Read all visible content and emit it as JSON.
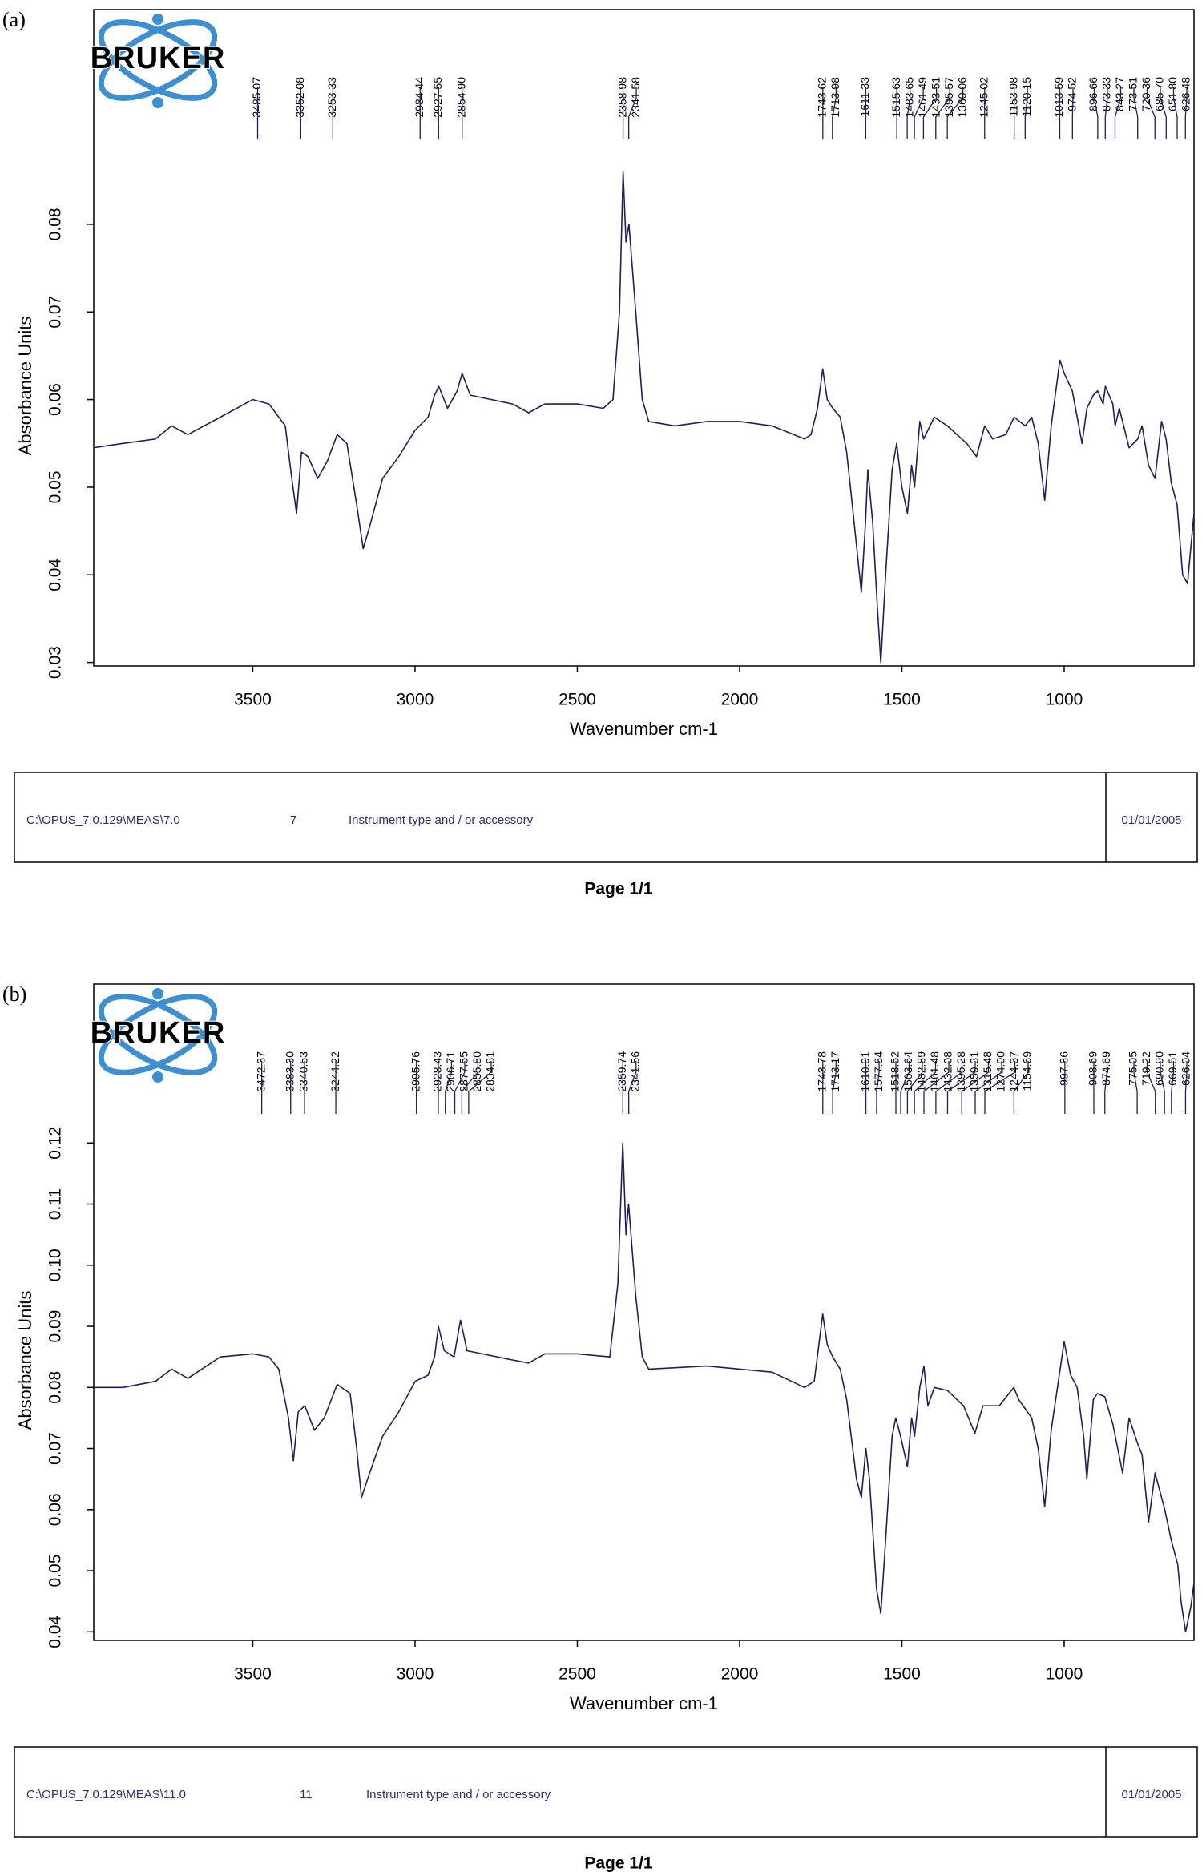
{
  "chart_data": [
    {
      "type": "line",
      "panel_label": "(a)",
      "logo_text": "BRUKER",
      "color": "#1f1f5c",
      "xlabel": "Wavenumber cm-1",
      "ylabel": "Absorbance Units",
      "xlim": [
        3990,
        600
      ],
      "ylim": [
        0.0296,
        0.1045
      ],
      "xticks": [
        3500,
        3000,
        2500,
        2000,
        1500,
        1000
      ],
      "yticks": [
        0.03,
        0.04,
        0.05,
        0.06,
        0.07,
        0.08
      ],
      "x": [
        3990,
        3900,
        3800,
        3750,
        3700,
        3600,
        3500,
        3450,
        3400,
        3380,
        3365,
        3350,
        3330,
        3300,
        3270,
        3240,
        3210,
        3180,
        3160,
        3140,
        3100,
        3050,
        3000,
        2960,
        2940,
        2927,
        2900,
        2870,
        2855,
        2830,
        2700,
        2650,
        2600,
        2500,
        2420,
        2390,
        2370,
        2359,
        2350,
        2341,
        2320,
        2300,
        2280,
        2200,
        2100,
        2000,
        1900,
        1800,
        1780,
        1760,
        1744,
        1730,
        1713,
        1690,
        1670,
        1650,
        1625,
        1612,
        1605,
        1590,
        1575,
        1565,
        1550,
        1530,
        1516,
        1500,
        1483,
        1470,
        1461,
        1445,
        1433,
        1420,
        1400,
        1360,
        1300,
        1270,
        1245,
        1220,
        1180,
        1154,
        1120,
        1100,
        1080,
        1060,
        1040,
        1013,
        1000,
        975,
        960,
        945,
        930,
        910,
        897,
        880,
        873,
        850,
        843,
        830,
        800,
        773,
        760,
        740,
        720,
        700,
        686,
        670,
        652,
        635,
        620,
        610,
        600
      ],
      "values": [
        0.0545,
        0.055,
        0.0555,
        0.057,
        0.056,
        0.058,
        0.06,
        0.0595,
        0.057,
        0.051,
        0.047,
        0.054,
        0.0535,
        0.051,
        0.053,
        0.056,
        0.055,
        0.048,
        0.043,
        0.0455,
        0.051,
        0.0535,
        0.0565,
        0.058,
        0.0605,
        0.0615,
        0.059,
        0.061,
        0.063,
        0.0605,
        0.0595,
        0.0585,
        0.0595,
        0.0595,
        0.059,
        0.06,
        0.07,
        0.086,
        0.078,
        0.08,
        0.07,
        0.06,
        0.0575,
        0.057,
        0.0575,
        0.0575,
        0.057,
        0.0555,
        0.056,
        0.059,
        0.0635,
        0.06,
        0.059,
        0.058,
        0.054,
        0.047,
        0.038,
        0.046,
        0.052,
        0.046,
        0.036,
        0.03,
        0.04,
        0.052,
        0.055,
        0.05,
        0.047,
        0.0525,
        0.05,
        0.0575,
        0.0555,
        0.0565,
        0.058,
        0.057,
        0.055,
        0.0535,
        0.057,
        0.0555,
        0.056,
        0.058,
        0.057,
        0.058,
        0.055,
        0.0485,
        0.057,
        0.0645,
        0.063,
        0.061,
        0.058,
        0.055,
        0.059,
        0.0605,
        0.061,
        0.0595,
        0.0615,
        0.0595,
        0.057,
        0.059,
        0.0545,
        0.0555,
        0.057,
        0.0525,
        0.051,
        0.0575,
        0.0555,
        0.0505,
        0.048,
        0.04,
        0.039,
        0.043,
        0.047
      ],
      "peak_labels": [
        3485.07,
        3352.08,
        3253.33,
        2984.44,
        2927.55,
        {
          "value": 2854.9,
          "label": "2854.90"
        },
        2358.98,
        2341.58,
        1743.62,
        1713.98,
        1611.33,
        1515.63,
        1483.65,
        1461.49,
        1433.51,
        1395.57,
        1360.06,
        1245.02,
        1153.98,
        1120.15,
        1013.59,
        974.52,
        896.66,
        873.33,
        843.27,
        773.51,
        720.36,
        {
          "value": 685.7,
          "label": "685.70"
        },
        {
          "value": 651.8,
          "label": "651.80"
        },
        626.48
      ],
      "footer": {
        "path": "C:\\OPUS_7.0.129\\MEAS\\7.0",
        "number": "7",
        "description": "Instrument type and / or accessory",
        "date": "01/01/2005"
      },
      "page": "Page 1/1"
    },
    {
      "type": "line",
      "panel_label": "(b)",
      "logo_text": "BRUKER",
      "color": "#1f1f5c",
      "xlabel": "Wavenumber cm-1",
      "ylabel": "Absorbance Units",
      "xlim": [
        3990,
        600
      ],
      "ylim": [
        0.0386,
        0.146
      ],
      "xticks": [
        3500,
        3000,
        2500,
        2000,
        1500,
        1000
      ],
      "yticks": [
        0.04,
        0.05,
        0.06,
        0.07,
        0.08,
        0.09,
        {
          "value": 0.1,
          "label": "0.10"
        },
        0.11,
        0.12
      ],
      "x": [
        3990,
        3900,
        3800,
        3750,
        3700,
        3600,
        3500,
        3450,
        3420,
        3390,
        3375,
        3360,
        3340,
        3310,
        3280,
        3240,
        3200,
        3180,
        3165,
        3140,
        3100,
        3050,
        3000,
        2960,
        2940,
        2928,
        2910,
        2880,
        2860,
        2840,
        2700,
        2650,
        2600,
        2500,
        2400,
        2375,
        2360,
        2350,
        2342,
        2320,
        2300,
        2280,
        2100,
        2000,
        1900,
        1800,
        1770,
        1744,
        1730,
        1713,
        1690,
        1670,
        1640,
        1625,
        1611,
        1600,
        1578,
        1565,
        1550,
        1530,
        1519,
        1504,
        1483,
        1470,
        1461,
        1445,
        1432,
        1420,
        1400,
        1360,
        1310,
        1275,
        1250,
        1200,
        1155,
        1140,
        1100,
        1080,
        1060,
        1040,
        1000,
        980,
        960,
        940,
        930,
        910,
        898,
        875,
        850,
        820,
        800,
        775,
        760,
        740,
        720,
        700,
        690,
        670,
        650,
        640,
        626,
        610,
        600
      ],
      "values": [
        0.08,
        0.08,
        0.081,
        0.083,
        0.0815,
        0.085,
        0.0855,
        0.085,
        0.083,
        0.075,
        0.068,
        0.076,
        0.077,
        0.073,
        0.075,
        0.0805,
        0.079,
        0.07,
        0.062,
        0.066,
        0.072,
        0.076,
        0.081,
        0.082,
        0.085,
        0.09,
        0.086,
        0.085,
        0.091,
        0.086,
        0.0845,
        0.084,
        0.0855,
        0.0855,
        0.085,
        0.097,
        0.12,
        0.105,
        0.11,
        0.095,
        0.085,
        0.083,
        0.0835,
        0.083,
        0.0825,
        0.08,
        0.081,
        0.092,
        0.087,
        0.085,
        0.083,
        0.078,
        0.065,
        0.062,
        0.07,
        0.065,
        0.047,
        0.043,
        0.055,
        0.072,
        0.075,
        0.072,
        0.067,
        0.075,
        0.072,
        0.08,
        0.0835,
        0.077,
        0.08,
        0.0795,
        0.077,
        0.0725,
        0.077,
        0.077,
        0.08,
        0.078,
        0.075,
        0.07,
        0.0605,
        0.073,
        0.0875,
        0.082,
        0.08,
        0.072,
        0.065,
        0.078,
        0.079,
        0.0785,
        0.074,
        0.066,
        0.075,
        0.071,
        0.069,
        0.058,
        0.066,
        0.062,
        0.06,
        0.055,
        0.051,
        0.045,
        0.04,
        0.044,
        0.048
      ],
      "peak_labels": [
        3472.37,
        {
          "value": 3383.3,
          "label": "3383.30"
        },
        3340.53,
        3244.22,
        2995.76,
        2928.43,
        2906.71,
        2877.55,
        {
          "value": 2855.8,
          "label": "2855.80"
        },
        2834.81,
        2359.74,
        2341.56,
        1743.78,
        1713.17,
        1610.91,
        1577.84,
        1518.52,
        1503.64,
        1482.89,
        1461.48,
        1432.08,
        1395.28,
        1359.31,
        1315.48,
        {
          "value": 1274,
          "label": "1274.00"
        },
        1244.37,
        1154.69,
        997.86,
        908.69,
        874.69,
        775.05,
        719.22,
        {
          "value": 690.9,
          "label": "690.90"
        },
        669.51,
        626.04
      ],
      "footer": {
        "path": "C:\\OPUS_7.0.129\\MEAS\\11.0",
        "number": "11",
        "description": "Instrument type and / or accessory",
        "date": "01/01/2005"
      },
      "page": "Page 1/1"
    }
  ]
}
